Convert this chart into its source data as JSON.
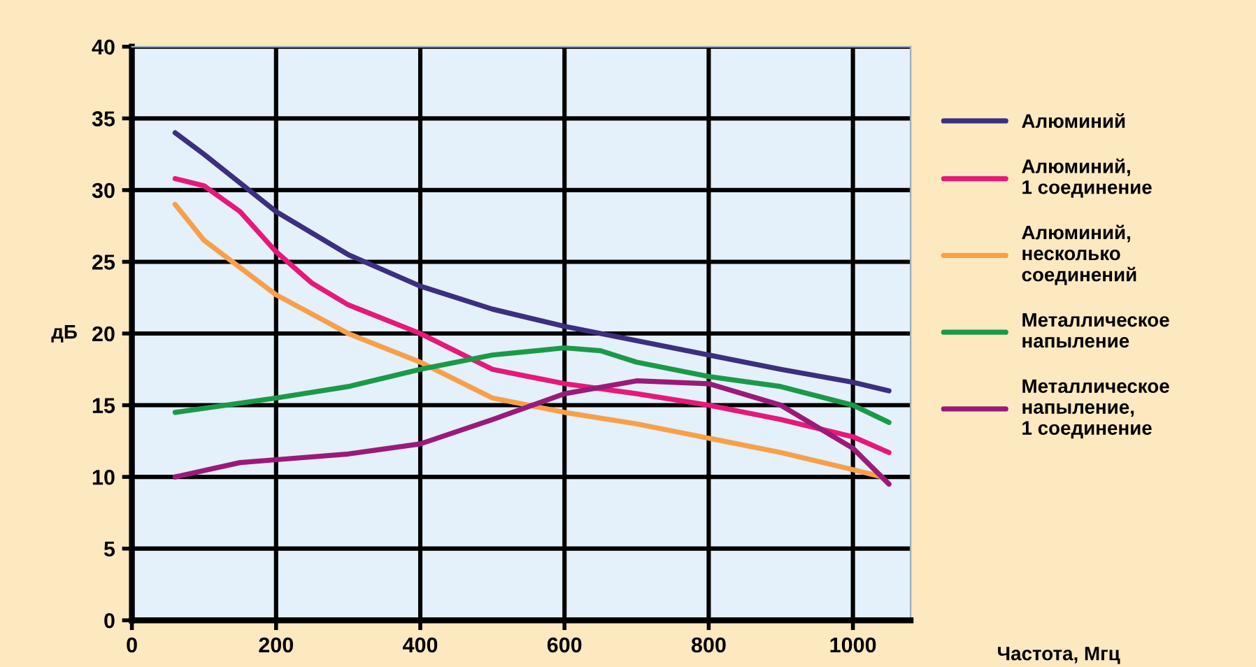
{
  "chart_data": {
    "type": "line",
    "xlabel": "Частота, Мгц",
    "ylabel": "дБ",
    "xlim": [
      0,
      1080
    ],
    "ylim": [
      0,
      40
    ],
    "xticks": [
      0,
      200,
      400,
      600,
      800,
      1000
    ],
    "yticks": [
      0,
      5,
      10,
      15,
      20,
      25,
      30,
      35,
      40
    ],
    "grid": true,
    "legend": "right",
    "line_style": "solid",
    "marker": "none",
    "series": [
      {
        "name": "Алюминий",
        "color": "#3b2f80",
        "x": [
          60,
          100,
          200,
          300,
          400,
          500,
          600,
          700,
          800,
          900,
          1000,
          1050
        ],
        "values": [
          34,
          32.5,
          28.5,
          25.5,
          23.3,
          21.7,
          20.5,
          19.5,
          18.5,
          17.5,
          16.6,
          16
        ]
      },
      {
        "name": "Алюминий,\n1 соединение",
        "color": "#e6197a",
        "x": [
          60,
          100,
          150,
          200,
          250,
          300,
          400,
          500,
          600,
          700,
          800,
          900,
          1000,
          1050
        ],
        "values": [
          30.8,
          30.3,
          28.5,
          25.7,
          23.5,
          22,
          20,
          17.5,
          16.5,
          15.8,
          15,
          14,
          12.8,
          11.7
        ]
      },
      {
        "name": "Алюминий,\nнесколько\nсоединений",
        "color": "#f7a04a",
        "x": [
          60,
          100,
          200,
          300,
          400,
          500,
          600,
          700,
          800,
          900,
          1000,
          1040
        ],
        "values": [
          29,
          26.5,
          22.7,
          20,
          18,
          15.5,
          14.5,
          13.7,
          12.7,
          11.7,
          10.5,
          10
        ]
      },
      {
        "name": "Металлическое\nнапыление",
        "color": "#1a9a48",
        "x": [
          60,
          200,
          300,
          400,
          500,
          600,
          650,
          700,
          800,
          900,
          1000,
          1050
        ],
        "values": [
          14.5,
          15.5,
          16.3,
          17.5,
          18.5,
          19,
          18.8,
          18,
          17,
          16.3,
          15,
          13.8
        ]
      },
      {
        "name": "Металлическое\nнапыление,\n1 соединение",
        "color": "#9a1a7a",
        "x": [
          60,
          150,
          200,
          300,
          400,
          500,
          600,
          700,
          800,
          900,
          1000,
          1050
        ],
        "values": [
          10,
          11,
          11.2,
          11.6,
          12.3,
          14,
          15.8,
          16.7,
          16.5,
          15,
          12,
          9.5
        ]
      }
    ]
  }
}
